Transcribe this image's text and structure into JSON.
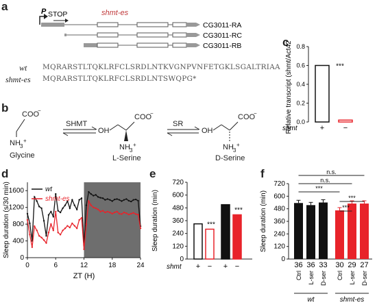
{
  "panels": {
    "a": "a",
    "b": "b",
    "c": "c",
    "d": "d",
    "e": "e",
    "f": "f"
  },
  "panel_a": {
    "promoter": "P",
    "stop": "STOP",
    "allele": "shmt-es",
    "transcripts": [
      "CG3011-RA",
      "CG3011-RC",
      "CG3011-RB"
    ],
    "seq_labels": [
      "wt",
      "shmt-es"
    ],
    "seq_wt": "MQRARSTLTQKLRFCLSRDLNTKVGNPVNFETGKLSGALTRIAA",
    "seq_mut": "MQRARSTLTQKLRFCLSRDLNTSWQPG*"
  },
  "panel_b": {
    "enzymes": [
      "SHMT",
      "SR"
    ],
    "compounds": [
      "Glycine",
      "L-Serine",
      "D-Serine"
    ]
  },
  "colors": {
    "wt": "#111111",
    "mut": "#e8232a",
    "dark_phase": "#6e6e6e"
  },
  "chart_data": [
    {
      "panel": "c",
      "type": "bar",
      "ylabel": "Relative transcript (shmt/Act42a)",
      "ylim": [
        0,
        0.8
      ],
      "yticks": [
        "0.0",
        "0.2",
        "0.4",
        "0.6",
        "0.8"
      ],
      "genotype_label": "shmt",
      "categories": [
        "+",
        "−"
      ],
      "values": [
        0.6,
        0.02
      ],
      "annotation": "***"
    },
    {
      "panel": "d",
      "type": "line",
      "ylabel": "Sleep duration (s/30 min)",
      "xlabel": "ZT (H)",
      "ylim": [
        0,
        1800
      ],
      "yticks": [
        "0",
        "400",
        "800",
        "1200",
        "1600"
      ],
      "xticks": [
        "0",
        "6",
        "12",
        "18",
        "24"
      ],
      "series": [
        {
          "name": "wt",
          "x": [
            0,
            0.5,
            1,
            1.5,
            2,
            2.5,
            3,
            3.5,
            4,
            4.5,
            5,
            5.5,
            6,
            6.5,
            7,
            7.5,
            8,
            8.5,
            9,
            9.5,
            10,
            10.5,
            11,
            11.5,
            12,
            12.5,
            13,
            13.5,
            14,
            14.5,
            15,
            15.5,
            16,
            16.5,
            17,
            17.5,
            18,
            18.5,
            19,
            19.5,
            20,
            20.5,
            21,
            21.5,
            22,
            22.5,
            23,
            23.5,
            24
          ],
          "y": [
            1050,
            820,
            400,
            1450,
            1350,
            1220,
            1180,
            880,
            520,
            1020,
            1100,
            980,
            1520,
            1120,
            1080,
            1180,
            1250,
            1350,
            1180,
            1380,
            1250,
            1150,
            1380,
            1420,
            300,
            1250,
            1570,
            1520,
            1480,
            1500,
            1450,
            1430,
            1420,
            1380,
            1400,
            1380,
            1350,
            1390,
            1400,
            1380,
            1350,
            1380,
            1400,
            1360,
            1340,
            1380,
            1390,
            1360,
            750
          ]
        },
        {
          "name": "shmt-es",
          "x": [
            0,
            0.5,
            1,
            1.5,
            2,
            2.5,
            3,
            3.5,
            4,
            4.5,
            5,
            5.5,
            6,
            6.5,
            7,
            7.5,
            8,
            8.5,
            9,
            9.5,
            10,
            10.5,
            11,
            11.5,
            12,
            12.5,
            13,
            13.5,
            14,
            14.5,
            15,
            15.5,
            16,
            16.5,
            17,
            17.5,
            18,
            18.5,
            19,
            19.5,
            20,
            20.5,
            21,
            21.5,
            22,
            22.5,
            23,
            23.5,
            24
          ],
          "y": [
            900,
            550,
            250,
            750,
            650,
            520,
            480,
            420,
            350,
            600,
            800,
            650,
            1100,
            600,
            550,
            650,
            700,
            760,
            720,
            820,
            760,
            700,
            900,
            950,
            200,
            800,
            1350,
            1250,
            1200,
            1180,
            1150,
            1100,
            1120,
            1080,
            1100,
            1080,
            1050,
            1080,
            1100,
            1050,
            1040,
            1080,
            1060,
            1030,
            1050,
            1070,
            1040,
            1030,
            700
          ]
        }
      ]
    },
    {
      "panel": "e",
      "type": "bar",
      "ylabel": "Sleep duration (min)",
      "ylim": [
        0,
        720
      ],
      "yticks": [
        "0",
        "120",
        "240",
        "360",
        "480",
        "600",
        "720"
      ],
      "genotype_label": "shmt",
      "categories": [
        "+",
        "−",
        "+",
        "−"
      ],
      "groups": [
        "light",
        "light",
        "dark",
        "dark"
      ],
      "values": [
        330,
        280,
        510,
        415
      ],
      "annotations": [
        "***",
        "***"
      ]
    },
    {
      "panel": "f",
      "type": "bar",
      "ylabel": "Sleep duration (min)",
      "ylim": [
        0,
        720
      ],
      "yticks": [
        "0",
        "120",
        "240",
        "360",
        "480",
        "600",
        "720"
      ],
      "categories": [
        "Ctrl",
        "L-ser",
        "D-ser",
        "Ctrl",
        "L-ser",
        "D-ser"
      ],
      "groups": [
        "wt",
        "wt",
        "wt",
        "shmt-es",
        "shmt-es",
        "shmt-es"
      ],
      "values": [
        535,
        515,
        540,
        465,
        530,
        530
      ],
      "n": [
        "36",
        "36",
        "33",
        "30",
        "29",
        "27"
      ],
      "comparisons": [
        {
          "from": 0,
          "to": 3,
          "label": "***"
        },
        {
          "from": 0,
          "to": 4,
          "label": "n.s."
        },
        {
          "from": 0,
          "to": 5,
          "label": "n.s."
        },
        {
          "from": 3,
          "to": 4,
          "label": "***"
        },
        {
          "from": 3,
          "to": 5,
          "label": "***"
        }
      ]
    }
  ]
}
